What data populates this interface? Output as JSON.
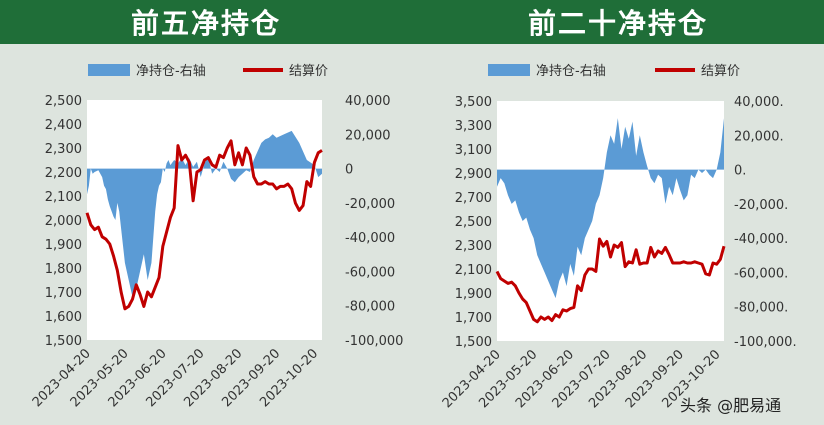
{
  "charts": [
    {
      "title": "前五净持仓",
      "legend": {
        "area": "净持仓-右轴",
        "line": "结算价"
      },
      "chart_data": {
        "type": "line",
        "x_ticks": [
          "2023-04-20",
          "2023-05-20",
          "2023-06-20",
          "2023-07-20",
          "2023-08-20",
          "2023-09-20",
          "2023-10-20"
        ],
        "y_left": {
          "min": 1500,
          "max": 2500,
          "ticks": [
            "1,500",
            "1,600",
            "1,700",
            "1,800",
            "1,900",
            "2,000",
            "2,100",
            "2,200",
            "2,300",
            "2,400",
            "2,500"
          ]
        },
        "y_right": {
          "min": -100000,
          "max": 40000,
          "ticks": [
            "40,000",
            "20,000",
            "0",
            "-20,000",
            "-40,000",
            "-60,000",
            "-80,000",
            "-100,000"
          ]
        },
        "series": [
          {
            "name": "净持仓-右轴",
            "axis": "right",
            "kind": "area",
            "color": "#5b9bd5",
            "x": [
              0,
              0.05,
              0.1,
              0.15,
              0.2,
              0.3,
              0.4,
              0.45,
              0.5,
              0.55,
              0.6,
              0.65,
              0.7,
              0.75,
              0.8,
              0.85,
              0.9,
              0.95,
              1,
              1.1,
              1.2,
              1.3,
              1.4,
              1.5,
              1.6,
              1.7,
              1.75,
              1.8,
              1.85,
              1.9,
              1.95,
              2,
              2.05,
              2.1,
              2.15,
              2.2,
              2.3,
              2.4,
              2.5,
              2.6,
              2.7,
              2.8,
              2.9,
              3,
              3.1,
              3.2,
              3.3,
              3.4,
              3.5,
              3.6,
              3.7,
              3.8,
              3.9,
              4,
              4.1,
              4.2,
              4.3,
              4.4,
              4.5,
              4.6,
              4.7,
              4.8,
              4.9,
              5,
              5.2,
              5.4,
              5.6,
              5.8,
              6,
              6.1,
              6.2
            ],
            "y": [
              -15000,
              -10000,
              0,
              -3000,
              -2000,
              -1000,
              -5000,
              -10000,
              -12000,
              -18000,
              -22000,
              -25000,
              -28000,
              -30000,
              -20000,
              -25000,
              -35000,
              -45000,
              -55000,
              -65000,
              -75000,
              -70000,
              -60000,
              -50000,
              -65000,
              -55000,
              -40000,
              -25000,
              -15000,
              -10000,
              -8000,
              0,
              -2000,
              3000,
              5000,
              2000,
              5000,
              3000,
              6000,
              2000,
              6000,
              1000,
              4000,
              -5000,
              3000,
              7000,
              -3000,
              0,
              -2000,
              4000,
              0,
              -6000,
              -8000,
              -5000,
              -3000,
              -1000,
              -2000,
              5000,
              10000,
              15000,
              17000,
              18000,
              20000,
              18000,
              20000,
              22000,
              15000,
              5000,
              2000,
              -5000,
              -3000
            ]
          },
          {
            "name": "结算价",
            "axis": "left",
            "kind": "line",
            "color": "#c00000",
            "x": [
              0,
              0.1,
              0.2,
              0.3,
              0.4,
              0.5,
              0.6,
              0.7,
              0.8,
              0.9,
              1,
              1.1,
              1.2,
              1.3,
              1.4,
              1.5,
              1.6,
              1.7,
              1.8,
              1.9,
              2,
              2.1,
              2.2,
              2.3,
              2.4,
              2.5,
              2.6,
              2.7,
              2.8,
              2.9,
              3,
              3.1,
              3.2,
              3.3,
              3.4,
              3.5,
              3.6,
              3.7,
              3.8,
              3.9,
              4,
              4.1,
              4.2,
              4.3,
              4.4,
              4.5,
              4.6,
              4.7,
              4.8,
              4.9,
              5,
              5.1,
              5.2,
              5.3,
              5.4,
              5.5,
              5.6,
              5.7,
              5.8,
              5.9,
              6,
              6.1,
              6.2
            ],
            "y": [
              2030,
              1980,
              1960,
              1970,
              1930,
              1920,
              1900,
              1850,
              1790,
              1700,
              1630,
              1640,
              1670,
              1730,
              1690,
              1640,
              1700,
              1680,
              1720,
              1760,
              1890,
              1950,
              2010,
              2050,
              2310,
              2250,
              2270,
              2240,
              2080,
              2200,
              2210,
              2250,
              2260,
              2230,
              2220,
              2270,
              2260,
              2300,
              2330,
              2230,
              2280,
              2230,
              2300,
              2270,
              2180,
              2150,
              2150,
              2160,
              2150,
              2150,
              2130,
              2140,
              2140,
              2150,
              2130,
              2070,
              2040,
              2060,
              2160,
              2140,
              2240,
              2280,
              2290
            ]
          }
        ]
      }
    },
    {
      "title": "前二十净持仓",
      "legend": {
        "area": "净持仓-右轴",
        "line": "结算价"
      },
      "chart_data": {
        "type": "line",
        "x_ticks": [
          "2023-04-20",
          "2023-05-20",
          "2023-06-20",
          "2023-07-20",
          "2023-08-20",
          "2023-09-20",
          "2023-10-20"
        ],
        "y_left": {
          "min": 1500,
          "max": 3500,
          "ticks": [
            "1,500",
            "1,700",
            "1,900",
            "2,100",
            "2,300",
            "2,500",
            "2,700",
            "2,900",
            "3,100",
            "3,300",
            "3,500"
          ]
        },
        "y_right": {
          "min": -100000,
          "max": 40000,
          "ticks": [
            "40,000.",
            "20,000.",
            "0.",
            "-20,000.",
            "-40,000.",
            "-60,000.",
            "-80,000.",
            "-100,000."
          ]
        },
        "series": [
          {
            "name": "净持仓-右轴",
            "axis": "right",
            "kind": "area",
            "color": "#5b9bd5",
            "x": [
              0,
              0.1,
              0.2,
              0.3,
              0.4,
              0.5,
              0.6,
              0.7,
              0.8,
              0.9,
              1,
              1.1,
              1.2,
              1.3,
              1.4,
              1.5,
              1.6,
              1.7,
              1.8,
              1.9,
              2,
              2.1,
              2.2,
              2.3,
              2.4,
              2.5,
              2.6,
              2.7,
              2.8,
              2.9,
              3,
              3.1,
              3.2,
              3.3,
              3.4,
              3.5,
              3.6,
              3.7,
              3.8,
              3.9,
              4,
              4.1,
              4.2,
              4.3,
              4.4,
              4.5,
              4.6,
              4.7,
              4.8,
              4.9,
              5,
              5.1,
              5.2,
              5.3,
              5.4,
              5.5,
              5.6,
              5.7,
              5.8,
              5.9,
              6,
              6.1,
              6.2
            ],
            "y": [
              -10000,
              -5000,
              -8000,
              -15000,
              -20000,
              -18000,
              -25000,
              -30000,
              -28000,
              -35000,
              -40000,
              -50000,
              -55000,
              -60000,
              -65000,
              -70000,
              -75000,
              -65000,
              -60000,
              -68000,
              -55000,
              -62000,
              -45000,
              -50000,
              -40000,
              -35000,
              -30000,
              -20000,
              -15000,
              -5000,
              10000,
              20000,
              15000,
              30000,
              12000,
              25000,
              18000,
              28000,
              8000,
              20000,
              10000,
              2000,
              -5000,
              -8000,
              -3000,
              -5000,
              -20000,
              -10000,
              -15000,
              -5000,
              -12000,
              -18000,
              -15000,
              -3000,
              -5000,
              0,
              -2000,
              0,
              -3000,
              -5000,
              0,
              10000,
              30000
            ]
          },
          {
            "name": "结算价",
            "axis": "left",
            "kind": "line",
            "color": "#c00000",
            "x": [
              0,
              0.1,
              0.2,
              0.3,
              0.4,
              0.5,
              0.6,
              0.7,
              0.8,
              0.9,
              1,
              1.1,
              1.2,
              1.3,
              1.4,
              1.5,
              1.6,
              1.7,
              1.8,
              1.9,
              2,
              2.1,
              2.2,
              2.3,
              2.4,
              2.5,
              2.6,
              2.7,
              2.8,
              2.9,
              3,
              3.1,
              3.2,
              3.3,
              3.4,
              3.5,
              3.6,
              3.7,
              3.8,
              3.9,
              4,
              4.1,
              4.2,
              4.3,
              4.4,
              4.5,
              4.6,
              4.7,
              4.8,
              4.9,
              5,
              5.1,
              5.2,
              5.3,
              5.4,
              5.5,
              5.6,
              5.7,
              5.8,
              5.9,
              6,
              6.1,
              6.2
            ],
            "y": [
              2080,
              2020,
              2000,
              1980,
              1990,
              1960,
              1900,
              1850,
              1820,
              1750,
              1680,
              1660,
              1700,
              1680,
              1700,
              1670,
              1720,
              1700,
              1760,
              1750,
              1770,
              1780,
              1960,
              1920,
              2050,
              2100,
              2100,
              2080,
              2350,
              2290,
              2330,
              2200,
              2300,
              2280,
              2320,
              2120,
              2160,
              2150,
              2260,
              2140,
              2150,
              2150,
              2280,
              2200,
              2250,
              2230,
              2280,
              2220,
              2150,
              2150,
              2150,
              2160,
              2150,
              2150,
              2160,
              2150,
              2140,
              2060,
              2050,
              2150,
              2140,
              2180,
              2290
            ]
          }
        ]
      }
    }
  ],
  "watermark": "头条 @肥易通"
}
